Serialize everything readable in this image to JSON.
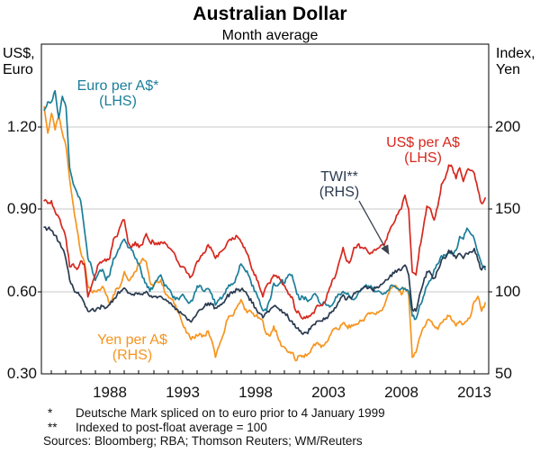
{
  "title": "Australian Dollar",
  "subtitle": "Month average",
  "footnotes": [
    {
      "marker": "*",
      "text": "Deutsche Mark spliced on to euro prior to 4 January 1999"
    },
    {
      "marker": "**",
      "text": "Indexed to post-float average = 100"
    }
  ],
  "sources": "Sources: Bloomberg; RBA; Thomson Reuters; WM/Reuters",
  "chart_data": {
    "type": "line",
    "x_start": 1983.5,
    "x_step": 0.25,
    "x_range": [
      1983.31,
      2013.99
    ],
    "grid": "horizontal-on",
    "legend_position": "in-plot-labels",
    "colors": {
      "grid": "#c9c9c9",
      "frame": "#000000",
      "arrow": "#3c4350",
      "background": "#ffffff"
    },
    "left_axis": {
      "title_lines": [
        "US$,",
        "Euro"
      ],
      "range": [
        0.3,
        1.5
      ],
      "ticks": [
        {
          "v": 1.2,
          "label": "1.20"
        },
        {
          "v": 0.9,
          "label": "0.90"
        },
        {
          "v": 0.6,
          "label": "0.60"
        },
        {
          "v": 0.3,
          "label": "0.30"
        }
      ]
    },
    "right_axis": {
      "title_lines": [
        "Index,",
        "Yen"
      ],
      "range": [
        50,
        250
      ],
      "ticks": [
        {
          "v": 200,
          "label": "200"
        },
        {
          "v": 150,
          "label": "150"
        },
        {
          "v": 100,
          "label": "100"
        },
        {
          "v": 50,
          "label": "50"
        }
      ]
    },
    "x_axis": {
      "minor_tick_years_start": 1984,
      "minor_tick_years_end": 2013,
      "labels": [
        {
          "v": 1988,
          "label": "1988"
        },
        {
          "v": 1993,
          "label": "1993"
        },
        {
          "v": 1998,
          "label": "1998"
        },
        {
          "v": 2003,
          "label": "2003"
        },
        {
          "v": 2008,
          "label": "2008"
        },
        {
          "v": 2013,
          "label": "2013"
        }
      ]
    },
    "series": [
      {
        "name": "Yen per A$",
        "axis": "right",
        "color": "#F7941D",
        "label_line1": "Yen per A$",
        "label_line2": "(RHS)",
        "values": [
          212,
          196,
          208,
          198,
          206,
          196,
          188,
          168,
          152,
          138,
          124,
          118,
          103,
          100,
          100,
          101,
          103,
          98,
          92,
          98,
          102,
          104,
          112,
          107,
          109,
          112,
          117,
          120,
          118,
          106,
          103,
          106,
          107,
          100,
          97,
          95,
          92,
          87,
          80,
          75,
          72,
          72,
          73,
          74,
          73,
          76,
          70,
          60,
          67,
          73,
          82,
          85,
          86,
          91,
          95,
          89,
          88,
          87,
          85,
          84,
          82,
          74,
          73,
          79,
          73,
          67,
          66,
          63,
          63,
          58,
          61,
          61,
          61,
          63,
          68,
          69,
          66,
          68,
          71,
          76,
          78,
          77,
          81,
          79,
          78,
          80,
          80,
          82,
          84,
          87,
          87,
          86,
          88,
          90,
          96,
          102,
          103,
          102,
          98,
          102,
          98,
          60,
          63,
          72,
          78,
          82,
          82,
          79,
          77,
          81,
          83,
          85,
          82,
          79,
          82,
          80,
          82,
          85,
          94,
          97,
          88,
          93
        ]
      },
      {
        "name": "Euro per A$",
        "axis": "left",
        "color": "#1B7E99",
        "label_line1": "Euro per A$*",
        "label_line2": "(LHS)",
        "values": [
          1.26,
          1.29,
          1.29,
          1.33,
          1.23,
          1.31,
          1.27,
          1.05,
          0.99,
          0.96,
          0.93,
          0.83,
          0.72,
          0.69,
          0.64,
          0.67,
          0.68,
          0.64,
          0.66,
          0.72,
          0.74,
          0.77,
          0.79,
          0.76,
          0.75,
          0.72,
          0.7,
          0.65,
          0.63,
          0.6,
          0.62,
          0.64,
          0.66,
          0.62,
          0.61,
          0.59,
          0.57,
          0.57,
          0.59,
          0.57,
          0.56,
          0.58,
          0.62,
          0.62,
          0.6,
          0.61,
          0.59,
          0.55,
          0.57,
          0.58,
          0.61,
          0.62,
          0.63,
          0.66,
          0.7,
          0.68,
          0.66,
          0.62,
          0.6,
          0.57,
          0.53,
          0.53,
          0.57,
          0.63,
          0.62,
          0.64,
          0.63,
          0.66,
          0.66,
          0.61,
          0.57,
          0.58,
          0.57,
          0.57,
          0.59,
          0.58,
          0.55,
          0.56,
          0.55,
          0.55,
          0.58,
          0.59,
          0.6,
          0.59,
          0.58,
          0.57,
          0.59,
          0.61,
          0.62,
          0.62,
          0.61,
          0.6,
          0.6,
          0.59,
          0.6,
          0.62,
          0.62,
          0.61,
          0.61,
          0.61,
          0.6,
          0.51,
          0.5,
          0.55,
          0.58,
          0.62,
          0.64,
          0.68,
          0.7,
          0.73,
          0.73,
          0.74,
          0.74,
          0.75,
          0.8,
          0.79,
          0.83,
          0.81,
          0.79,
          0.74,
          0.7,
          0.68
        ]
      },
      {
        "name": "TWI",
        "axis": "right",
        "color": "#2A3A50",
        "label_line1": "TWI**",
        "label_line2": "(RHS)",
        "values": [
          139,
          138,
          137,
          134,
          130,
          126,
          119,
          107,
          102,
          99,
          97,
          93,
          88,
          89,
          88,
          90,
          91,
          90,
          92,
          95,
          98,
          100,
          102,
          99,
          98,
          99,
          99,
          98,
          100,
          97,
          97,
          96,
          97,
          95,
          94,
          92,
          89,
          87,
          86,
          84,
          82,
          84,
          87,
          89,
          91,
          93,
          92,
          90,
          91,
          93,
          96,
          99,
          100,
          101,
          101,
          100,
          97,
          93,
          90,
          87,
          84,
          87,
          89,
          91,
          90,
          89,
          87,
          84,
          82,
          78,
          76,
          74,
          75,
          77,
          80,
          82,
          82,
          83,
          85,
          88,
          90,
          94,
          98,
          95,
          96,
          99,
          100,
          101,
          103,
          102,
          101,
          102,
          103,
          105,
          107,
          110,
          111,
          113,
          113,
          116,
          110,
          89,
          88,
          98,
          105,
          112,
          111,
          108,
          113,
          119,
          120,
          125,
          123,
          120,
          123,
          120,
          123,
          124,
          126,
          119,
          113,
          115
        ]
      },
      {
        "name": "US$ per A$",
        "axis": "left",
        "color": "#D6281E",
        "label_line1": "US$ per A$",
        "label_line2": "(LHS)",
        "values": [
          0.93,
          0.92,
          0.93,
          0.89,
          0.87,
          0.83,
          0.79,
          0.69,
          0.7,
          0.68,
          0.71,
          0.7,
          0.58,
          0.62,
          0.66,
          0.7,
          0.71,
          0.71,
          0.72,
          0.79,
          0.8,
          0.84,
          0.86,
          0.78,
          0.76,
          0.78,
          0.76,
          0.77,
          0.81,
          0.78,
          0.78,
          0.77,
          0.78,
          0.78,
          0.76,
          0.75,
          0.73,
          0.7,
          0.69,
          0.67,
          0.65,
          0.67,
          0.71,
          0.73,
          0.74,
          0.77,
          0.75,
          0.72,
          0.74,
          0.75,
          0.77,
          0.79,
          0.79,
          0.8,
          0.78,
          0.76,
          0.73,
          0.68,
          0.66,
          0.62,
          0.58,
          0.62,
          0.63,
          0.66,
          0.65,
          0.64,
          0.62,
          0.59,
          0.58,
          0.53,
          0.52,
          0.5,
          0.51,
          0.51,
          0.52,
          0.55,
          0.55,
          0.56,
          0.6,
          0.64,
          0.66,
          0.71,
          0.76,
          0.71,
          0.71,
          0.76,
          0.77,
          0.76,
          0.76,
          0.74,
          0.74,
          0.75,
          0.76,
          0.77,
          0.79,
          0.83,
          0.85,
          0.88,
          0.9,
          0.95,
          0.9,
          0.67,
          0.66,
          0.76,
          0.83,
          0.91,
          0.9,
          0.86,
          0.91,
          0.99,
          1.01,
          1.06,
          1.05,
          1.01,
          1.05,
          1.0,
          1.04,
          1.04,
          1.03,
          0.97,
          0.92,
          0.94
        ]
      }
    ]
  }
}
